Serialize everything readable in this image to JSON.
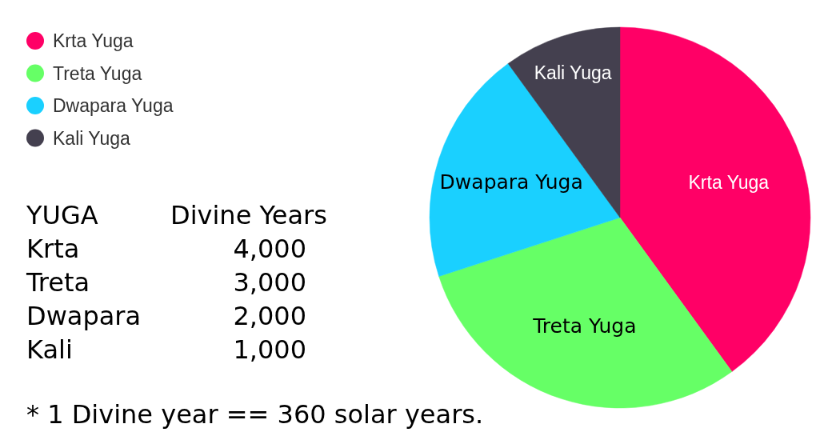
{
  "chart_data": {
    "type": "pie",
    "categories": [
      "Krta Yuga",
      "Treta Yuga",
      "Dwapara Yuga",
      "Kali Yuga"
    ],
    "values": [
      40,
      30,
      20,
      10
    ],
    "colors": [
      "#ff0066",
      "#66ff66",
      "#1ad0ff",
      "#44404f"
    ],
    "annotations": [
      "YUGA",
      "Divine Years",
      "Krta",
      "4,000",
      "Treta",
      "3,000",
      "Dwapara",
      "2,000",
      "Kali",
      "1,000",
      "* 1 Divine year == 360 solar years."
    ],
    "legend": "top left"
  }
}
